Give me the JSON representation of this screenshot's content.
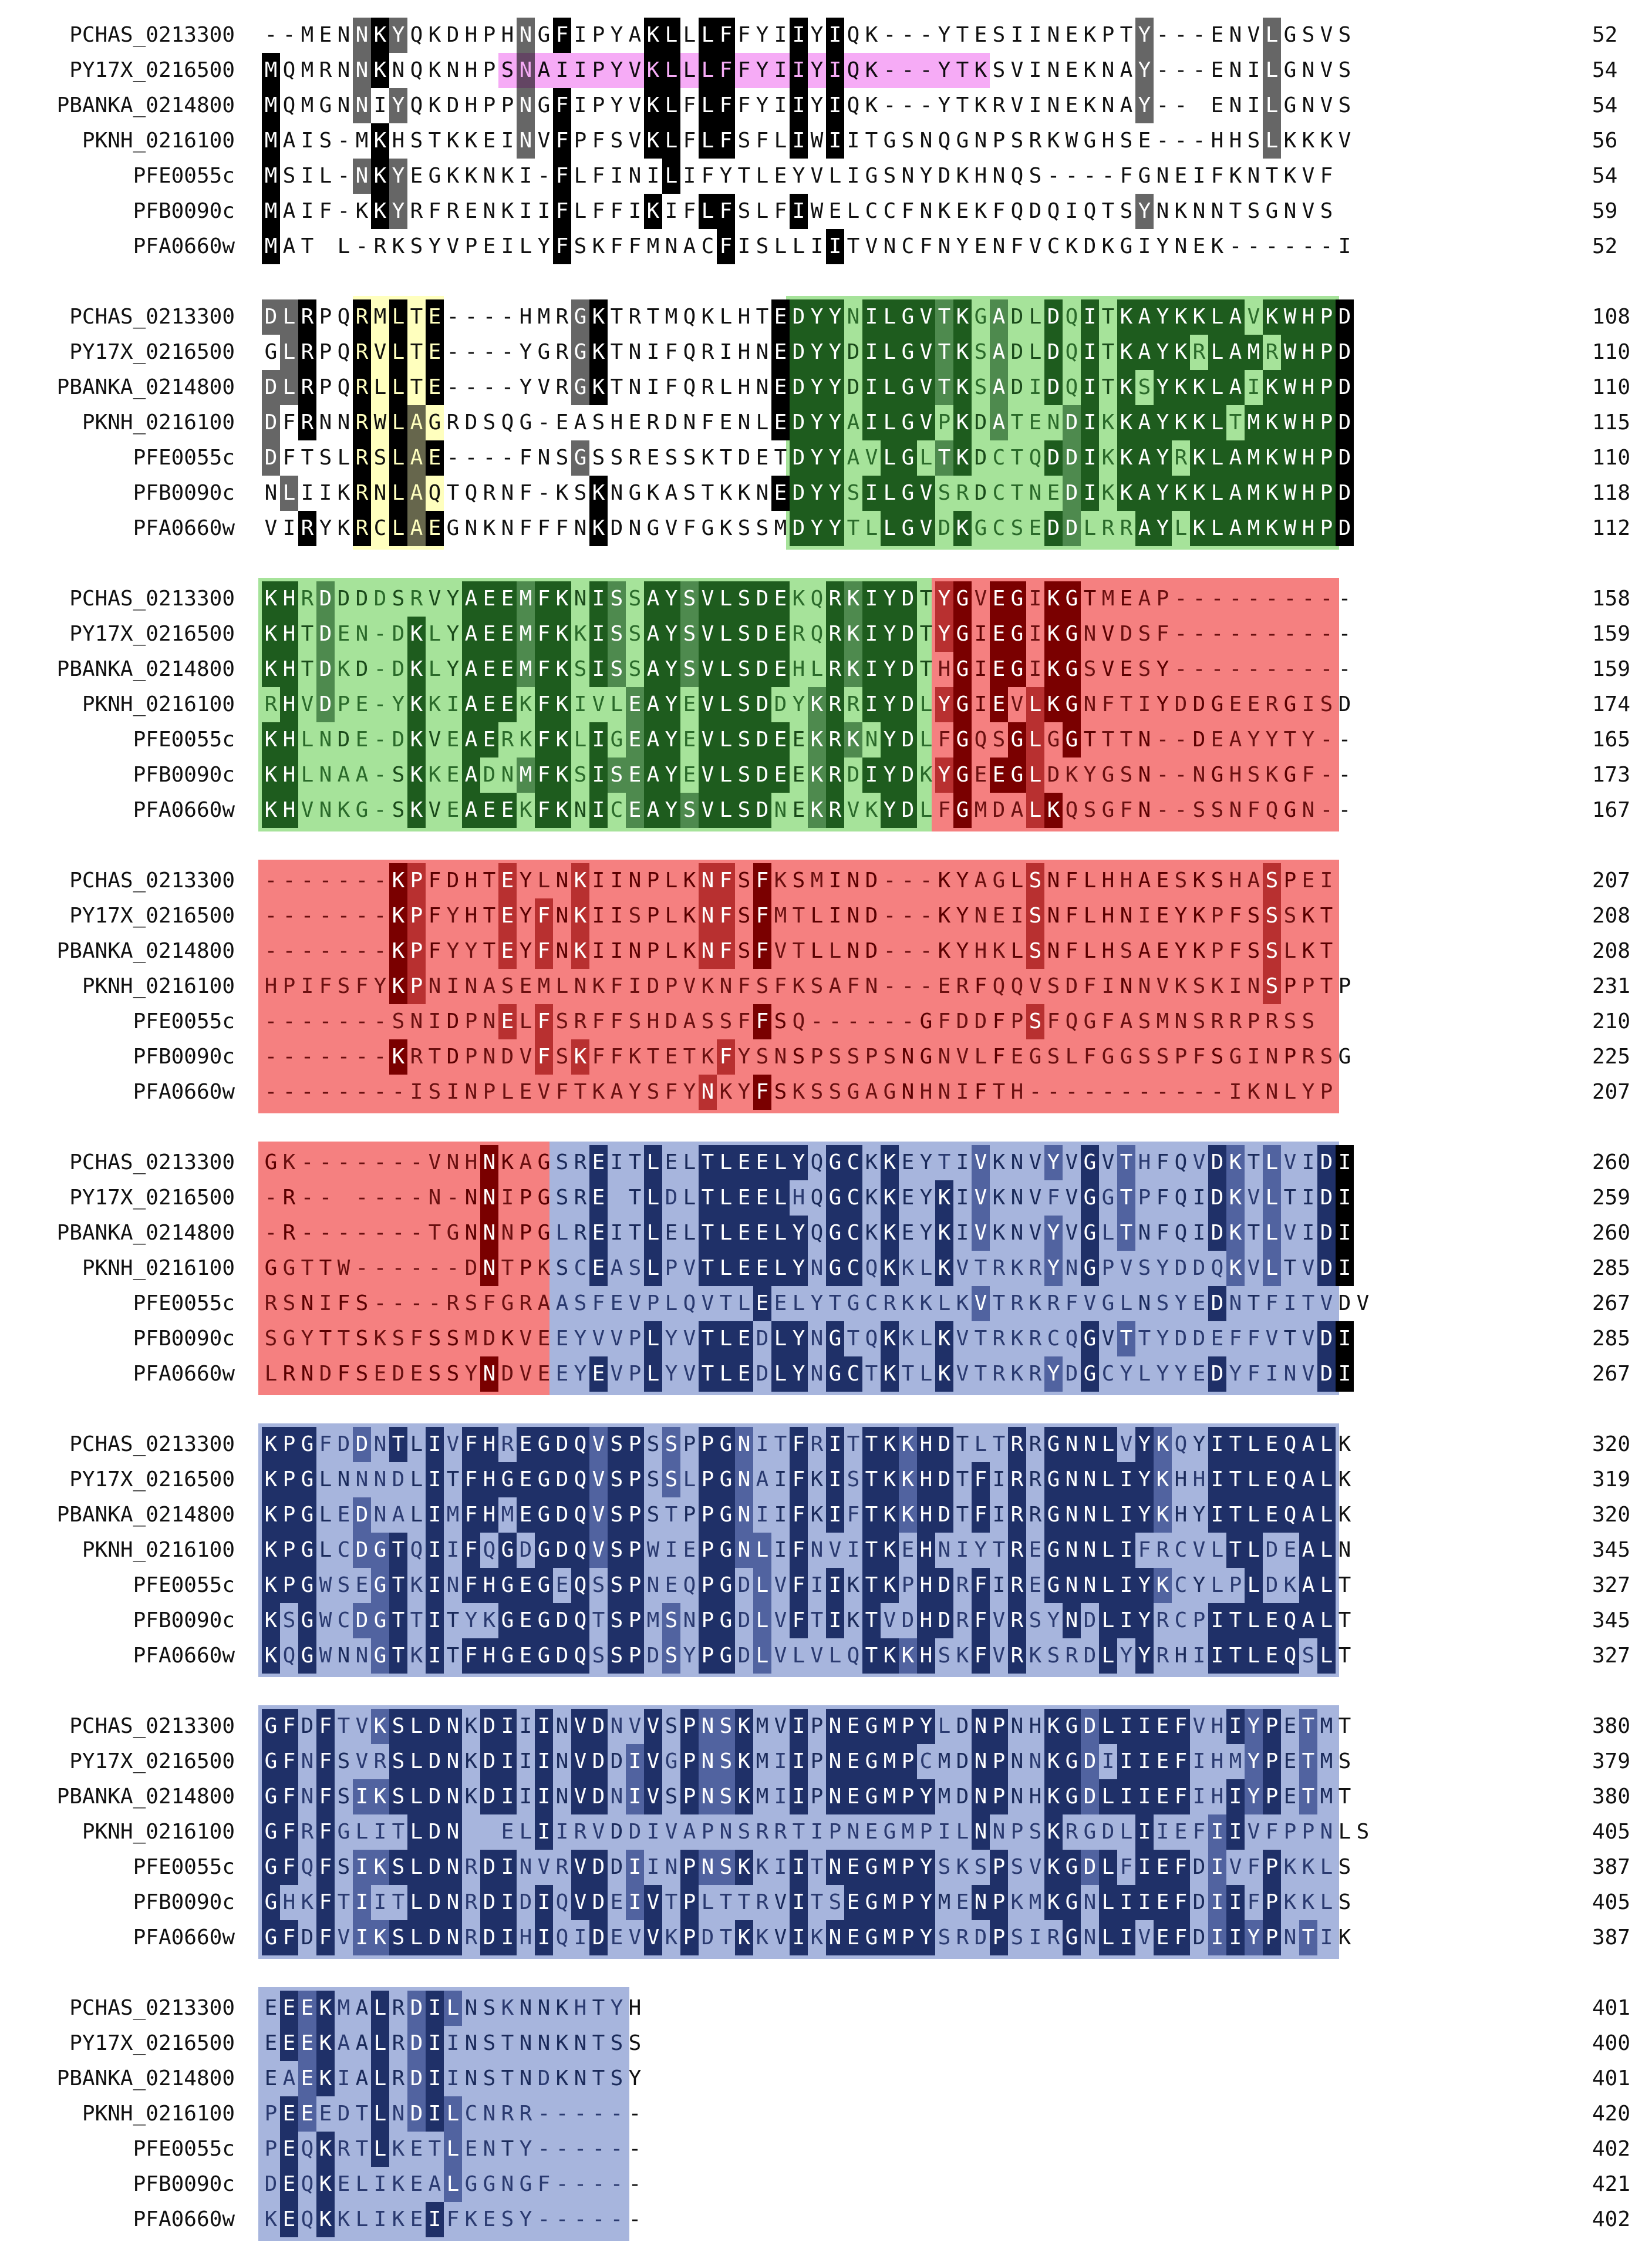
{
  "alignment": {
    "sequence_names": [
      "PCHAS_0213300",
      "PY17X_0216500",
      "PBANKA_0214800",
      "PKNH_0216100",
      "PFE0055c",
      "PFB0090c",
      "PFA0660w"
    ],
    "blocks": [
      {
        "rows": [
          {
            "name": "PCHAS_0213300",
            "seq": "--MENNKYQKDHPHNGFIPYAKLLLFFYIIYIQK---YTESIINEKPTY---ENVLGSVS",
            "end": "52"
          },
          {
            "name": "PY17X_0216500",
            "seq": "MQMRNNKNQKNHPSNAIIPYVKLLLFFYIIYIQK---YTKSVINEKNAY---ENILGNVS",
            "end": "54"
          },
          {
            "name": "PBANKA_0214800",
            "seq": "MQMGNNIYQKDHPPNGFIPYVKLFLFFYIIYIQK---YTKRVINEKNAY-- ENILGNVS",
            "end": "54"
          },
          {
            "name": "PKNH_0216100",
            "seq": "MAIS-MKHSTKKEINVFPFSVKLFLFSFLIWIITGSNQGNPSRKWGHSE---HHSLKKKV",
            "end": "56"
          },
          {
            "name": "PFE0055c",
            "seq": "MSIL-NKYEGKKNKI-FLFINILIFYTLEYVLIGSNYDKHNQS----FGNEIFKNTKVF",
            "end": "54"
          },
          {
            "name": "PFB0090c",
            "seq": "MAIF-KKYRFRENKIIFLFFIKIFLFSLFIWELCCFNKEKFQDQIQTSYNKNNTSGNVS",
            "end": "59"
          },
          {
            "name": "PFA0660w",
            "seq": "MAT L-RKSYVPEILYFSKFFMNACFISLLIITVNCFNYENFVCKDKGIYNEK------I",
            "end": "52"
          }
        ]
      },
      {
        "rows": [
          {
            "name": "PCHAS_0213300",
            "seq": "DLRPQRMLTE----HMRGKTRTMQKLHTEDYYNILGVTKGADLDQITKAYKKLAVKWHPD",
            "end": "108"
          },
          {
            "name": "PY17X_0216500",
            "seq": "GLRPQRVLTE----YGRGKTNIFQRIHNEDYYDILGVTKSADLDQITKAYKRLAMRWHPD",
            "end": "110"
          },
          {
            "name": "PBANKA_0214800",
            "seq": "DLRPQRLLTE----YVRGKTNIFQRLHNEDYYDILGVTKSADIDQITKSYKKLAIKWHPD",
            "end": "110"
          },
          {
            "name": "PKNH_0216100",
            "seq": "DFRNNRWLAGRDSQG-EASHERDNFENLEDYYAILGVPKDATENDIKKAYKKLTMKWHPD",
            "end": "115"
          },
          {
            "name": "PFE0055c",
            "seq": "DFTSLRSLAE----FNSGSSRESSKTDETDYYAVLGLTKDCTQDDIKKAYRKLAMKWHPD",
            "end": "110"
          },
          {
            "name": "PFB0090c",
            "seq": "NLIIKRNLAQTQRNF-KSKNGKASTKKNEDYYSILGVSRDCTNEDIKKAYKKLAMKWHPD",
            "end": "118"
          },
          {
            "name": "PFA0660w",
            "seq": "VIRYKRCLAEGNKNFFFNKDNGVFGKSSMDYYTLLGVDKGCSEDDLRRAYLKLAMKWHPD",
            "end": "112"
          }
        ]
      },
      {
        "rows": [
          {
            "name": "PCHAS_0213300",
            "seq": "KHRDDDDSRVYAEEMFKNISSAYSVLSDEKQRKIYDTYGVEGIKGTMEAP----------",
            "end": "158"
          },
          {
            "name": "PY17X_0216500",
            "seq": "KHTDEN-DKLYAEEMFKKISSAYSVLSDERQRKIYDTYGIEGIKGNVDSF----------",
            "end": "159"
          },
          {
            "name": "PBANKA_0214800",
            "seq": "KHTDKD-DKLYAEEMFKSISSAYSVLSDEHLRKIYDTHGIEGIKGSVESY----------",
            "end": "159"
          },
          {
            "name": "PKNH_0216100",
            "seq": "RHVDPE-YKKIAEEKFKIVLEAYEVLSDDYKRRIYDLYGIEVLKGNFTIYDDGEERGISD",
            "end": "174"
          },
          {
            "name": "PFE0055c",
            "seq": "KHLNDE-DKVEAERKFKLIGEAYEVLSDEEKRKNYDLFGQSGLGGTTTN--DEAYYTY--",
            "end": "165"
          },
          {
            "name": "PFB0090c",
            "seq": "KHLNAA-SKKEADNMFKSISEAYEVLSDEEKRDIYDKYGEEGLDKYGSN--NGHSKGF--",
            "end": "173"
          },
          {
            "name": "PFA0660w",
            "seq": "KHVNKG-SKVEAEEKFKNICEAYSVLSDNEKRVKYDLFGMDALKQSGFN--SSNFQGN--",
            "end": "167"
          }
        ]
      },
      {
        "rows": [
          {
            "name": "PCHAS_0213300",
            "seq": "-------KPFDHTEYLNKIINPLKNFSFKSMIND---KYAGLSNFLHHAESKSHASPEI",
            "end": "207"
          },
          {
            "name": "PY17X_0216500",
            "seq": "-------KPFYHTEYFNKIISPLKNFSFMTLIND---KYNEISNFLHNIEYKPFSSSKT",
            "end": "208"
          },
          {
            "name": "PBANKA_0214800",
            "seq": "-------KPFYYTEYFNKIINPLKNFSFVTLLND---KYHKLSNFLHSAEYKPFSSLKT",
            "end": "208"
          },
          {
            "name": "PKNH_0216100",
            "seq": "HPIFSFYKPNINASEMLNKFIDPVKNFSFKSAFN---ERFQQVSDFINNVKSKINSPPTP",
            "end": "231"
          },
          {
            "name": "PFE0055c",
            "seq": "-------SNIDPNELFSRFFSHDASSFFSQ------GFDDFPSFQGFASMNSRRPRSS",
            "end": "210"
          },
          {
            "name": "PFB0090c",
            "seq": "-------KRTDPNDVFSKFFKTETKFYSNSPSSPSNGNVLFEGSLFGGSSPFSGINPRSG",
            "end": "225"
          },
          {
            "name": "PFA0660w",
            "seq": "--------ISINPLEVFTKAYSFYNKYFSKSSGAGNHNIFTH-----------IKNLYP",
            "end": "207"
          }
        ]
      },
      {
        "rows": [
          {
            "name": "PCHAS_0213300",
            "seq": "GK-------VNHNKAGSREITLELTLEELYQGCKKEYTIVKNVYVGVTHFQVDKTLVIDI",
            "end": "260"
          },
          {
            "name": "PY17X_0216500",
            "seq": "-R-- ----N-NNIPGSRE TLDLTLEELHQGCKKEYKIVKNVFVGGTPFQIDKVLTIDI",
            "end": "259"
          },
          {
            "name": "PBANKA_0214800",
            "seq": "-R-------TGNNNPGLREITLELTLEELYQGCKKEYKIVKNVYVGLTNFQIDKTLVIDI",
            "end": "260"
          },
          {
            "name": "PKNH_0216100",
            "seq": "GGTTW------DNTPKSCEASLPVTLEELYNGCQKKLKVTRKRYNGPVSYDDQKVLTVDI",
            "end": "285"
          },
          {
            "name": "PFE0055c",
            "seq": "RSNIFS----RSFGRAASFEVPLQVTLEELYTGCRKKLKVTRKRFVGLNSYEDNTFITVDV",
            "end": "267"
          },
          {
            "name": "PFB0090c",
            "seq": "SGYTTSKSFSSMDKVEEYVVPLYVTLEDLYNGTQKKLKVTRKRCQGVTTYDDEFFVTVDI",
            "end": "285"
          },
          {
            "name": "PFA0660w",
            "seq": "LRNDFSEDESSYNDVEEYEVPLYVTLEDLYNGCTKTLKVTRKRYDGCYLYYEDYFINVDI",
            "end": "267"
          }
        ]
      },
      {
        "rows": [
          {
            "name": "PCHAS_0213300",
            "seq": "KPGFDDNTLIVFHREGDQVSPSSPPGNITFRITTKKHDTLTRRGNNLVYKQYITLEQALK",
            "end": "320"
          },
          {
            "name": "PY17X_0216500",
            "seq": "KPGLNNNDLITFHGEGDQVSPSSLPGNAIFKISTKKHDTFIRRGNNLIYKHHITLEQALK",
            "end": "319"
          },
          {
            "name": "PBANKA_0214800",
            "seq": "KPGLEDNALIMFHMEGDQVSPSTPPGNIIFKIFTKKHDTFIRRGNNLIYKHYITLEQALK",
            "end": "320"
          },
          {
            "name": "PKNH_0216100",
            "seq": "KPGLCDGTQIIFQGDGDQVSPWIEPGNLIFNVITKEHNIYTREGNNLIFRCVLTLDEALN",
            "end": "345"
          },
          {
            "name": "PFE0055c",
            "seq": "KPGWSEGTKINFHGEGEQSSPNEQPGDLVFIIKTKPHDRFIREGNNLIYKCYLPLDKALT",
            "end": "327"
          },
          {
            "name": "PFB0090c",
            "seq": "KSGWCDGTTITYKGEGDQTSPMSNPGDLVFTIKTVDHDRFVRSYNDLIYRCPITLEQALT",
            "end": "345"
          },
          {
            "name": "PFA0660w",
            "seq": "KQGWNNGTKITFHGEGDQSSPDSYPGDLVLVLQTKKHSKFVRKSRDLYYRHIITLEQSLT",
            "end": "327"
          }
        ]
      },
      {
        "rows": [
          {
            "name": "PCHAS_0213300",
            "seq": "GFDFTVKSLDNKDIIINVDNVVSPNSKMVIPNEGMPYLDNPNHKGDLIIEFVHIYPETMT",
            "end": "380"
          },
          {
            "name": "PY17X_0216500",
            "seq": "GFNFSVRSLDNKDIIINVDDIVGPNSKMIIPNEGMPCMDNPNNKGDIIIEFIHMYPETMS",
            "end": "379"
          },
          {
            "name": "PBANKA_0214800",
            "seq": "GFNFSIKSLDNKDIIINVDNIVSPNSKMIIPNEGMPYMDNPNHKGDLIIEFIHIYPETMT",
            "end": "380"
          },
          {
            "name": "PKNH_0216100",
            "seq": "GFRFGLITLDN  ELIIRVDDIVAPNSRRTIPNEGMPILNNPSKRGDLIIEFIIVFPPNLS",
            "end": "405"
          },
          {
            "name": "PFE0055c",
            "seq": "GFQFSIKSLDNRDINVRVDDIINPNSKKIITNEGMPYSKSPSVKGDLFIEFDIVFPKKLS",
            "end": "387"
          },
          {
            "name": "PFB0090c",
            "seq": "GHKFTIITLDNRDIDIQVDEIVTPLTTRVITSEGMPYMENPKMKGNLIIEFDIIFPKKLS",
            "end": "405"
          },
          {
            "name": "PFA0660w",
            "seq": "GFDFVIKSLDNRDIHIQIDEVVKPDTKKVIKNEGMPYSRDPSIRGNLIVEFDIIYPNTIK",
            "end": "387"
          }
        ]
      },
      {
        "rows": [
          {
            "name": "PCHAS_0213300",
            "seq": "EEEKMALRDILNSKNNKHTYH",
            "end": "401"
          },
          {
            "name": "PY17X_0216500",
            "seq": "EEEKAALRDIINSTNNKNTSS",
            "end": "400"
          },
          {
            "name": "PBANKA_0214800",
            "seq": "EAEKIALRDIINSTNDKNTSY",
            "end": "401"
          },
          {
            "name": "PKNH_0216100",
            "seq": "PEEEDTLNDILCNRR------",
            "end": "420"
          },
          {
            "name": "PFE0055c",
            "seq": "PEQKRTLKETLENTY------",
            "end": "402"
          },
          {
            "name": "PFB0090c",
            "seq": "DEQKELIKEALGGNGF-----",
            "end": "421"
          },
          {
            "name": "PFA0660w",
            "seq": "KEQKKLIKEIFKESY------",
            "end": "402"
          }
        ]
      }
    ]
  },
  "colors": {
    "identical": "#000000",
    "similar": "#666666",
    "conserved_light": "#b4b4b4",
    "green_light": "#a6e39a",
    "green_dark": "#1e5c1e",
    "green_mid": "#4e8a4e",
    "red_light": "#f58080",
    "red_dark": "#7a0000",
    "red_mid": "#b83030",
    "blue_light": "#a7b5dd",
    "blue_dark": "#1f3068",
    "blue_mid": "#5163a0",
    "yellow_light": "#ffff88",
    "yellow_dark": "#7a7a00",
    "magenta": "#ee66ee"
  }
}
